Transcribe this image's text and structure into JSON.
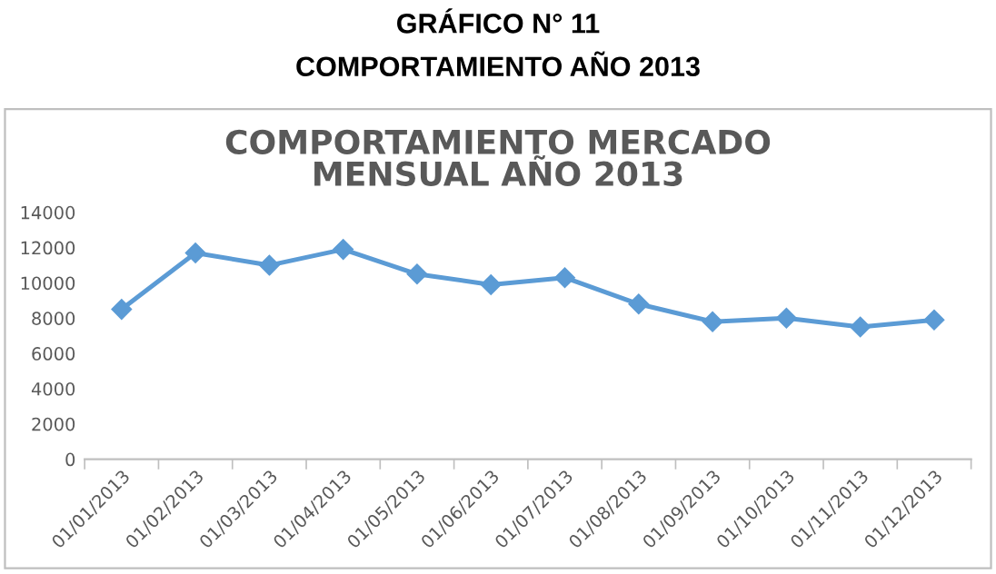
{
  "chart_data": {
    "type": "line",
    "title": "COMPORTAMIENTO MERCADO\nMENSUAL AÑO 2013",
    "annotations": [
      "GRÁFICO N° 11",
      "COMPORTAMIENTO AÑO 2013"
    ],
    "categories": [
      "01/01/2013",
      "01/02/2013",
      "01/03/2013",
      "01/04/2013",
      "01/05/2013",
      "01/06/2013",
      "01/07/2013",
      "01/08/2013",
      "01/09/2013",
      "01/10/2013",
      "01/11/2013",
      "01/12/2013"
    ],
    "series": [
      {
        "color": "#5b9bd5",
        "values": [
          8500,
          11700,
          11000,
          11900,
          10500,
          9900,
          10300,
          8800,
          7800,
          8000,
          7500,
          7900
        ]
      }
    ],
    "ylim": [
      0,
      14000
    ],
    "yticks": [
      0,
      2000,
      4000,
      6000,
      8000,
      10000,
      12000,
      14000
    ],
    "grid": false,
    "legend": false,
    "marker": "diamond",
    "line_style": "solid"
  }
}
